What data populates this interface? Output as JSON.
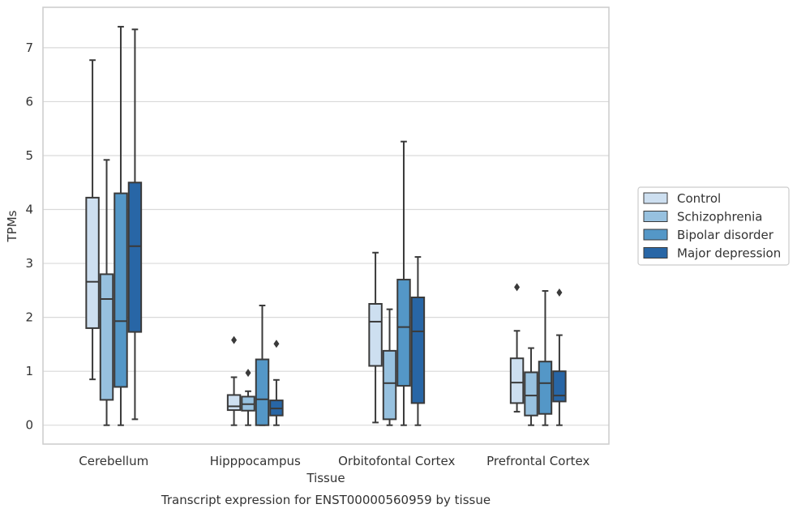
{
  "chart_data": {
    "type": "box",
    "title": "Transcript expression for ENST00000560959 by tissue",
    "xlabel": "Tissue",
    "ylabel": "TPMs",
    "ylim": [
      -0.35,
      7.75
    ],
    "yticks": [
      0,
      1,
      2,
      3,
      4,
      5,
      6,
      7
    ],
    "grid": true,
    "legend_position": "right",
    "categories": [
      "Cerebellum",
      "Hipppocampus",
      "Orbitofontal Cortex",
      "Prefrontal Cortex"
    ],
    "series": [
      {
        "name": "Control",
        "color": "#cddff0",
        "boxes": [
          {
            "whislo": 0.85,
            "q1": 1.8,
            "med": 2.66,
            "q3": 4.22,
            "whishi": 6.77,
            "fliers": []
          },
          {
            "whislo": 0.0,
            "q1": 0.28,
            "med": 0.35,
            "q3": 0.56,
            "whishi": 0.89,
            "fliers": [
              1.58
            ]
          },
          {
            "whislo": 0.05,
            "q1": 1.1,
            "med": 1.92,
            "q3": 2.25,
            "whishi": 3.2,
            "fliers": []
          },
          {
            "whislo": 0.25,
            "q1": 0.41,
            "med": 0.79,
            "q3": 1.24,
            "whishi": 1.75,
            "fliers": [
              2.56
            ]
          }
        ]
      },
      {
        "name": "Schizophrenia",
        "color": "#97c1df",
        "boxes": [
          {
            "whislo": 0.0,
            "q1": 0.47,
            "med": 2.34,
            "q3": 2.8,
            "whishi": 4.92,
            "fliers": []
          },
          {
            "whislo": 0.0,
            "q1": 0.27,
            "med": 0.39,
            "q3": 0.53,
            "whishi": 0.63,
            "fliers": [
              0.97
            ]
          },
          {
            "whislo": 0.0,
            "q1": 0.11,
            "med": 0.78,
            "q3": 1.38,
            "whishi": 2.15,
            "fliers": []
          },
          {
            "whislo": 0.0,
            "q1": 0.18,
            "med": 0.55,
            "q3": 0.98,
            "whishi": 1.43,
            "fliers": []
          }
        ]
      },
      {
        "name": "Bipolar disorder",
        "color": "#5497c7",
        "boxes": [
          {
            "whislo": 0.0,
            "q1": 0.71,
            "med": 1.93,
            "q3": 4.3,
            "whishi": 7.39,
            "fliers": []
          },
          {
            "whislo": 0.0,
            "q1": 0.0,
            "med": 0.48,
            "q3": 1.22,
            "whishi": 2.22,
            "fliers": []
          },
          {
            "whislo": 0.0,
            "q1": 0.73,
            "med": 1.82,
            "q3": 2.7,
            "whishi": 5.26,
            "fliers": []
          },
          {
            "whislo": 0.0,
            "q1": 0.21,
            "med": 0.78,
            "q3": 1.18,
            "whishi": 2.49,
            "fliers": []
          }
        ]
      },
      {
        "name": "Major depression",
        "color": "#2866a6",
        "boxes": [
          {
            "whislo": 0.11,
            "q1": 1.73,
            "med": 3.32,
            "q3": 4.5,
            "whishi": 7.34,
            "fliers": []
          },
          {
            "whislo": 0.0,
            "q1": 0.18,
            "med": 0.31,
            "q3": 0.46,
            "whishi": 0.84,
            "fliers": [
              1.51
            ]
          },
          {
            "whislo": 0.0,
            "q1": 0.41,
            "med": 1.74,
            "q3": 2.37,
            "whishi": 3.12,
            "fliers": []
          },
          {
            "whislo": 0.0,
            "q1": 0.44,
            "med": 0.55,
            "q3": 1.0,
            "whishi": 1.67,
            "fliers": [
              2.46
            ]
          }
        ]
      }
    ]
  }
}
